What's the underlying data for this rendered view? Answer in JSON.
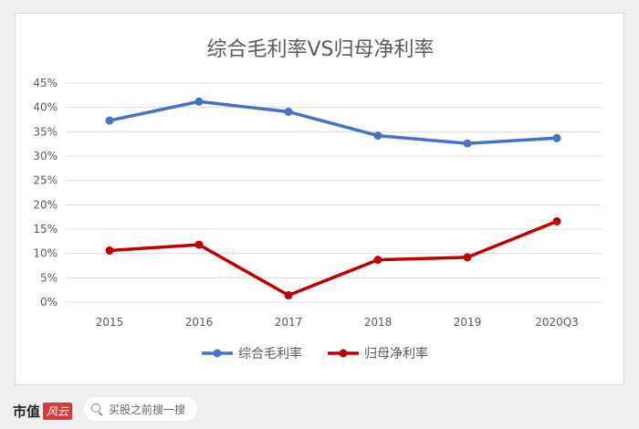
{
  "chart_data": {
    "type": "line",
    "title": "综合毛利率VS归母净利率",
    "categories": [
      "2015",
      "2016",
      "2017",
      "2018",
      "2019",
      "2020Q3"
    ],
    "y_ticks": [
      "0%",
      "5%",
      "10%",
      "15%",
      "20%",
      "25%",
      "30%",
      "35%",
      "40%",
      "45%"
    ],
    "ylim": [
      0,
      45
    ],
    "grid": true,
    "legend_position": "bottom",
    "series": [
      {
        "name": "综合毛利率",
        "color": "#4472c4",
        "values": [
          37.3,
          41.2,
          39.1,
          34.2,
          32.6,
          33.7
        ]
      },
      {
        "name": "归母净利率",
        "color": "#c00000",
        "values": [
          10.6,
          11.8,
          1.4,
          8.7,
          9.2,
          16.6
        ]
      }
    ]
  },
  "footer": {
    "brand": "市值",
    "brand_logo": "风云",
    "search_placeholder": "买股之前搜一搜"
  }
}
